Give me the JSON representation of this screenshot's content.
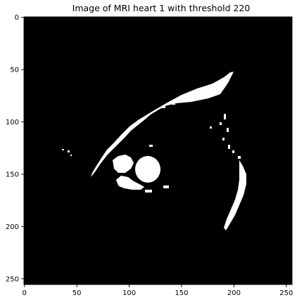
{
  "figure": {
    "title": "Image of MRI heart 1 with threshold 220",
    "image_size": [
      256,
      256
    ],
    "background_color": "#000000",
    "foreground_color": "#ffffff",
    "axes": {
      "x_ticks": [
        0,
        50,
        100,
        150,
        200,
        250
      ],
      "y_ticks": [
        0,
        50,
        100,
        150,
        200,
        250
      ]
    }
  }
}
